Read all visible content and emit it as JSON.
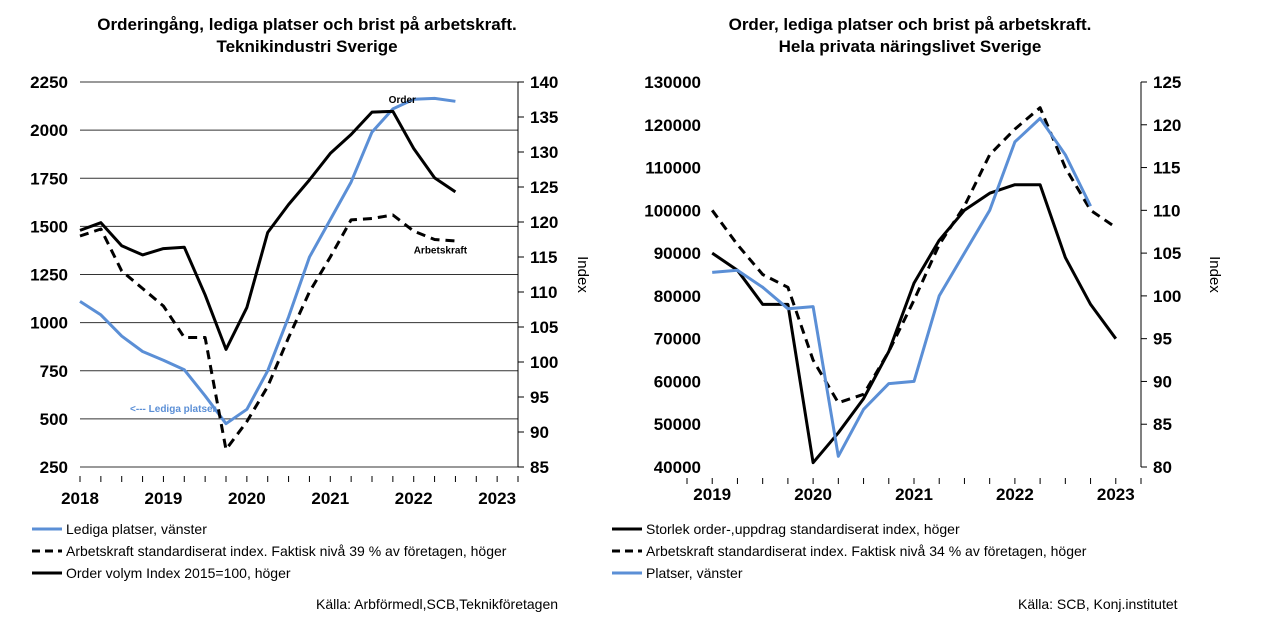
{
  "colors": {
    "blue": "#5b8fd6",
    "black": "#000000",
    "grid": "#333333"
  },
  "chart_data": [
    {
      "type": "line",
      "title": [
        "Orderingång, lediga platser och brist på arbetskraft.",
        "Teknikindustri Sverige"
      ],
      "left_ticks": [
        "2250",
        "2000",
        "1750",
        "1500",
        "1250",
        "1000",
        "750",
        "500",
        "250"
      ],
      "right_ticks": [
        "140",
        "135",
        "130",
        "125",
        "120",
        "115",
        "110",
        "105",
        "100",
        "95",
        "90",
        "85"
      ],
      "ylim_left": [
        250,
        2250
      ],
      "ylim_right": [
        85,
        140
      ],
      "ylabel_right": "Index",
      "x_ticks": [
        "2018",
        "2019",
        "2020",
        "2021",
        "2022",
        "2023"
      ],
      "x_range": [
        2018.0,
        2023.25
      ],
      "grid": true,
      "series": [
        {
          "name": "Lediga platser, vänster",
          "axis": "left",
          "color": "#5b8fd6",
          "dash": false,
          "x": [
            2018.0,
            2018.25,
            2018.5,
            2018.75,
            2019.0,
            2019.25,
            2019.5,
            2019.75,
            2020.0,
            2020.25,
            2020.5,
            2020.75,
            2021.0,
            2021.25,
            2021.5,
            2021.75,
            2022.0,
            2022.25,
            2022.5,
            2022.75,
            2023.0
          ],
          "y": [
            1110,
            1040,
            930,
            850,
            805,
            755,
            620,
            475,
            550,
            750,
            1030,
            1340,
            1535,
            1730,
            1990,
            2110,
            2160,
            2165,
            2150,
            null,
            null
          ]
        },
        {
          "name": "Arbetskraft standardiserat index. Faktisk nivå 39 % av företagen, höger",
          "axis": "right",
          "color": "#000000",
          "dash": true,
          "x": [
            2018.0,
            2018.25,
            2018.5,
            2018.75,
            2019.0,
            2019.25,
            2019.5,
            2019.75,
            2020.0,
            2020.25,
            2020.5,
            2020.75,
            2021.0,
            2021.25,
            2021.5,
            2021.75,
            2022.0,
            2022.25,
            2022.5,
            2022.75,
            2023.0
          ],
          "y": [
            118,
            119,
            113,
            110.5,
            108,
            103.5,
            103.5,
            87.5,
            91.5,
            96.5,
            103.5,
            110,
            115,
            120.3,
            120.5,
            121,
            118.7,
            117.5,
            117.3,
            null,
            null
          ]
        },
        {
          "name": "Order volym Index 2015=100, höger",
          "axis": "right",
          "color": "#000000",
          "dash": false,
          "x": [
            2018.0,
            2018.25,
            2018.5,
            2018.75,
            2019.0,
            2019.25,
            2019.5,
            2019.75,
            2020.0,
            2020.25,
            2020.5,
            2020.75,
            2021.0,
            2021.25,
            2021.5,
            2021.75,
            2022.0,
            2022.25,
            2022.5,
            2022.75,
            2023.0
          ],
          "y": [
            118.8,
            119.9,
            116.6,
            115.3,
            116.2,
            116.4,
            109.6,
            101.8,
            107.8,
            118.5,
            122.5,
            126,
            129.8,
            132.5,
            135.7,
            135.8,
            130.5,
            126.3,
            124.3,
            null,
            null
          ]
        }
      ],
      "annotations": [
        {
          "text": "Order",
          "x": 2021.7,
          "y": 137,
          "axis": "right",
          "color": "#000000"
        },
        {
          "text": "Arbetskraft",
          "x": 2022.0,
          "y": 115.5,
          "axis": "right",
          "color": "#000000"
        },
        {
          "text": "<--- Lediga platser",
          "x": 2018.6,
          "y": 535,
          "axis": "left",
          "color": "#5b8fd6"
        }
      ],
      "legend": "bottom",
      "source": "Källa: Arbförmedl,SCB,Teknikföretagen"
    },
    {
      "type": "line",
      "title": [
        "Order, lediga platser och brist på arbetskraft.",
        "Hela privata näringslivet Sverige"
      ],
      "left_ticks": [
        "130000",
        "120000",
        "110000",
        "100000",
        "90000",
        "80000",
        "70000",
        "60000",
        "50000",
        "40000"
      ],
      "right_ticks": [
        "125",
        "120",
        "115",
        "110",
        "105",
        "100",
        "95",
        "90",
        "85",
        "80"
      ],
      "ylim_left": [
        40000,
        130000
      ],
      "ylim_right": [
        80,
        125
      ],
      "ylabel_right": "Index",
      "x_ticks": [
        "2019",
        "2020",
        "2021",
        "2022",
        "2023"
      ],
      "x_range": [
        2018.75,
        2023.25
      ],
      "grid": false,
      "series": [
        {
          "name": "Storlek order-,uppdrag standardiserat index, höger",
          "axis": "right",
          "color": "#000000",
          "dash": false,
          "x": [
            2019.0,
            2019.25,
            2019.5,
            2019.75,
            2020.0,
            2020.25,
            2020.5,
            2020.75,
            2021.0,
            2021.25,
            2021.5,
            2021.75,
            2022.0,
            2022.25,
            2022.5,
            2022.75,
            2023.0
          ],
          "y": [
            105,
            103,
            99,
            99,
            80.5,
            84,
            88,
            93.5,
            101.5,
            106.5,
            110,
            112,
            113,
            113,
            104.5,
            99,
            95
          ]
        },
        {
          "name": "Arbetskraft standardiserat index. Faktisk nivå 34 % av företagen, höger",
          "axis": "right",
          "color": "#000000",
          "dash": true,
          "x": [
            2019.0,
            2019.25,
            2019.5,
            2019.75,
            2020.0,
            2020.25,
            2020.5,
            2020.75,
            2021.0,
            2021.25,
            2021.5,
            2021.75,
            2022.0,
            2022.25,
            2022.5,
            2022.75,
            2023.0
          ],
          "y": [
            110,
            106,
            102.5,
            101,
            92.5,
            87.5,
            88.5,
            93.5,
            99.5,
            106,
            110.5,
            116.5,
            119.5,
            122,
            115,
            110,
            108
          ]
        },
        {
          "name": "Platser, vänster",
          "axis": "left",
          "color": "#5b8fd6",
          "dash": false,
          "x": [
            2019.0,
            2019.25,
            2019.5,
            2019.75,
            2020.0,
            2020.25,
            2020.5,
            2020.75,
            2021.0,
            2021.25,
            2021.5,
            2021.75,
            2022.0,
            2022.25,
            2022.5,
            2022.75,
            2023.0
          ],
          "y": [
            85500,
            86000,
            82000,
            77000,
            77500,
            42500,
            53500,
            59500,
            60000,
            80000,
            90000,
            100000,
            116000,
            121500,
            113000,
            101000,
            null
          ]
        }
      ],
      "legend": "bottom",
      "source": "Källa: SCB, Konj.institutet"
    }
  ]
}
